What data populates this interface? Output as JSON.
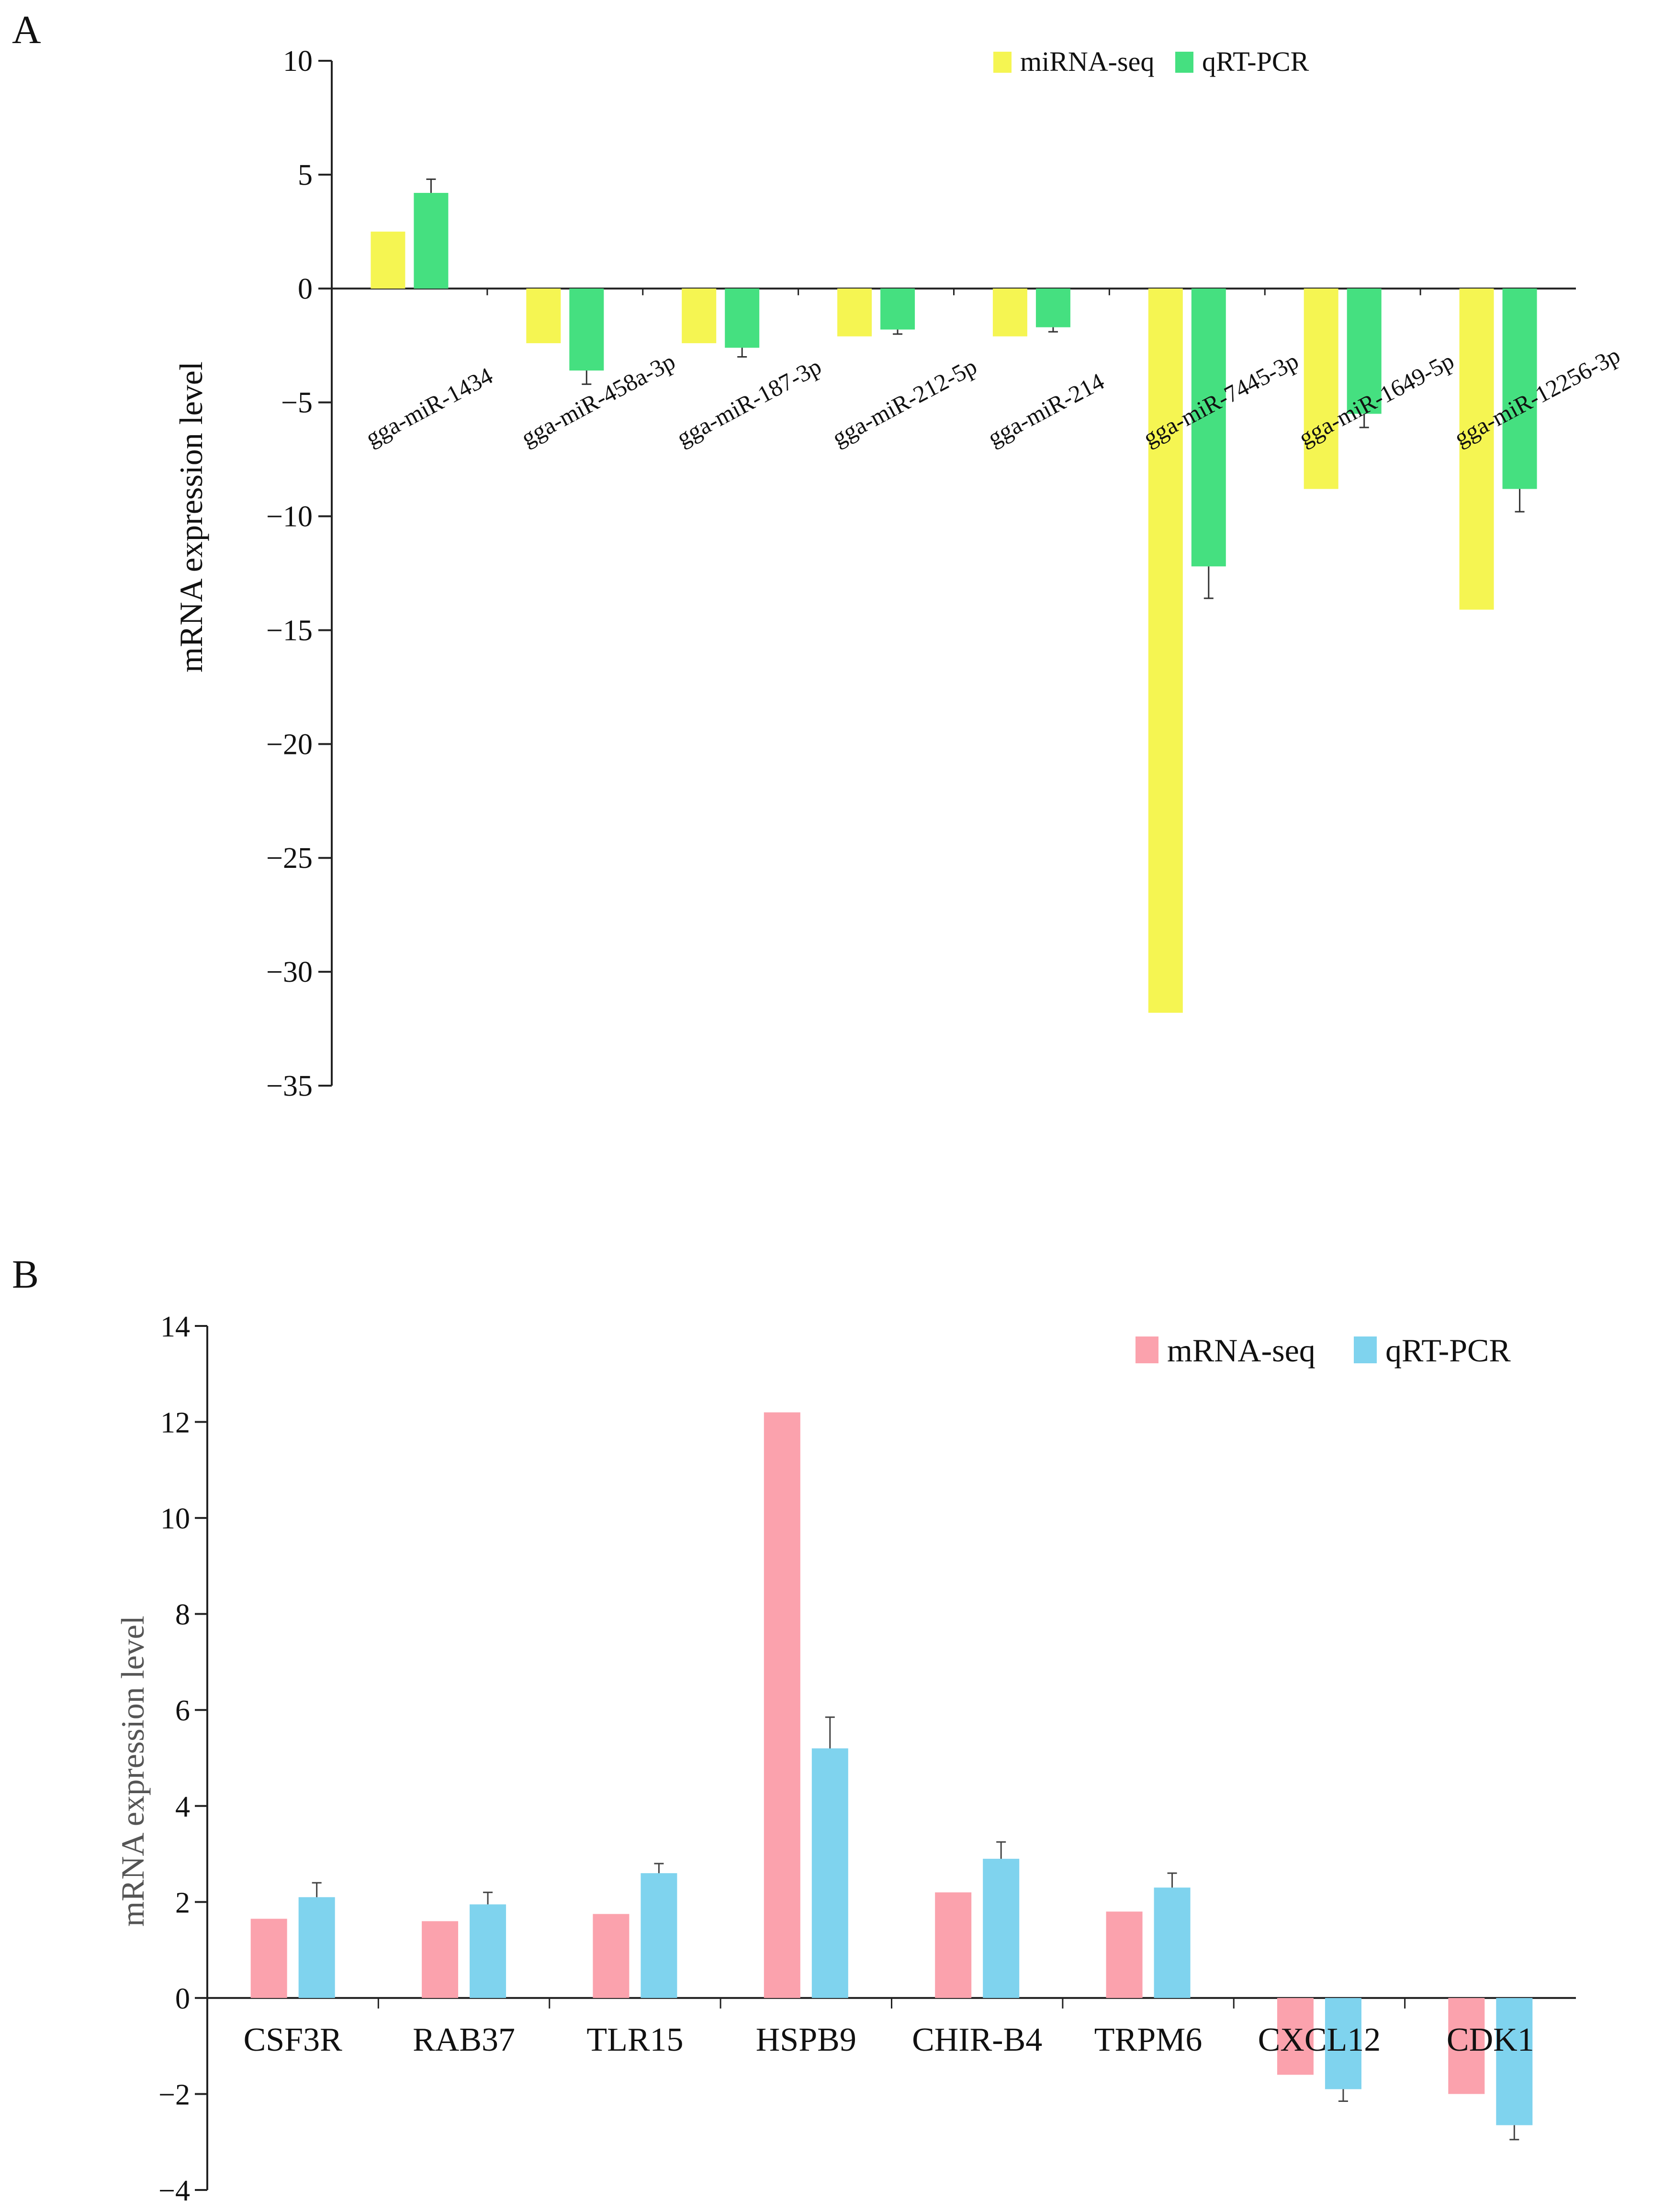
{
  "figure": {
    "panels": [
      "A",
      "B"
    ]
  },
  "chart_data": [
    {
      "type": "bar",
      "panel": "A",
      "ylabel": "mRNA expression level",
      "ylim": [
        -35,
        10
      ],
      "yticks": [
        "10",
        "5",
        "0",
        "−5",
        "−10",
        "−15",
        "−20",
        "−25",
        "−30",
        "−35"
      ],
      "categories": [
        "gga-miR-1434",
        "gga-miR-458a-3p",
        "gga-miR-187-3p",
        "gga-miR-212-5p",
        "gga-miR-214",
        "gga-miR-7445-3p",
        "gga-miR-1649-5p",
        "gga-miR-12256-3p"
      ],
      "series": [
        {
          "name": "miRNA-seq",
          "color": "#f5f552",
          "values": [
            2.5,
            -2.4,
            -2.4,
            -2.1,
            -2.1,
            -31.8,
            -8.8,
            -14.1
          ]
        },
        {
          "name": "qRT-PCR",
          "color": "#45e080",
          "values": [
            4.2,
            -3.6,
            -2.6,
            -1.8,
            -1.7,
            -12.2,
            -5.5,
            -8.8
          ],
          "errors": [
            0.6,
            0.6,
            0.4,
            0.2,
            0.2,
            1.4,
            0.6,
            1.0
          ]
        }
      ],
      "legend_position": "top-right",
      "grid": false
    },
    {
      "type": "bar",
      "panel": "B",
      "ylabel": "mRNA expression level",
      "ylim": [
        -4,
        14
      ],
      "yticks": [
        "14",
        "12",
        "10",
        "8",
        "6",
        "4",
        "2",
        "0",
        "−2",
        "−4"
      ],
      "categories": [
        "CSF3R",
        "RAB37",
        "TLR15",
        "HSPB9",
        "CHIR-B4",
        "TRPM6",
        "CXCL12",
        "CDK1"
      ],
      "series": [
        {
          "name": "mRNA-seq",
          "color": "#fba2ad",
          "values": [
            1.65,
            1.6,
            1.75,
            12.2,
            2.2,
            1.8,
            -1.6,
            -2.0
          ]
        },
        {
          "name": "qRT-PCR",
          "color": "#7fd3ee",
          "values": [
            2.1,
            1.95,
            2.6,
            5.2,
            2.9,
            2.3,
            -1.9,
            -2.65
          ],
          "errors": [
            0.3,
            0.25,
            0.2,
            0.65,
            0.35,
            0.3,
            0.25,
            0.3
          ]
        }
      ],
      "legend_position": "top-right",
      "grid": false
    }
  ]
}
